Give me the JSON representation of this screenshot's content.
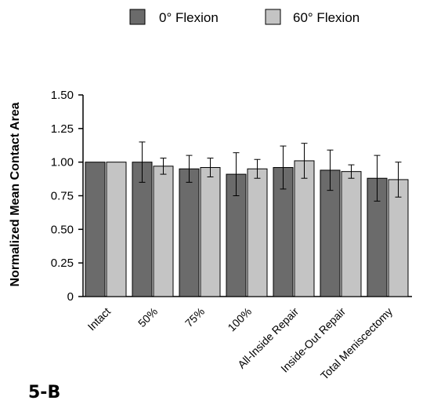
{
  "panel_label": "5-B",
  "chart_data": {
    "type": "bar",
    "ylabel": "Normalized  Mean  Contact  Area",
    "ylim": [
      0,
      1.5
    ],
    "yticks": [
      "0",
      "0.25",
      "0.50",
      "0.75",
      "1.00",
      "1.25",
      "1.50"
    ],
    "ytick_values": [
      0,
      0.25,
      0.5,
      0.75,
      1.0,
      1.25,
      1.5
    ],
    "grid": false,
    "legend_position": "top",
    "categories": [
      "Intact",
      "50%",
      "75%",
      "100%",
      "All-Inside Repair",
      "Inside-Out Repair",
      "Total Meniscectomy"
    ],
    "series": [
      {
        "name": "0° Flexion",
        "color": "#6b6b6b",
        "values": [
          1.0,
          1.0,
          0.95,
          0.91,
          0.96,
          0.94,
          0.88
        ],
        "error": [
          0,
          0.15,
          0.1,
          0.16,
          0.16,
          0.15,
          0.17
        ]
      },
      {
        "name": "60° Flexion",
        "color": "#c4c4c4",
        "values": [
          1.0,
          0.97,
          0.96,
          0.95,
          1.01,
          0.93,
          0.87
        ],
        "error": [
          0,
          0.06,
          0.07,
          0.07,
          0.13,
          0.05,
          0.13
        ]
      }
    ]
  }
}
